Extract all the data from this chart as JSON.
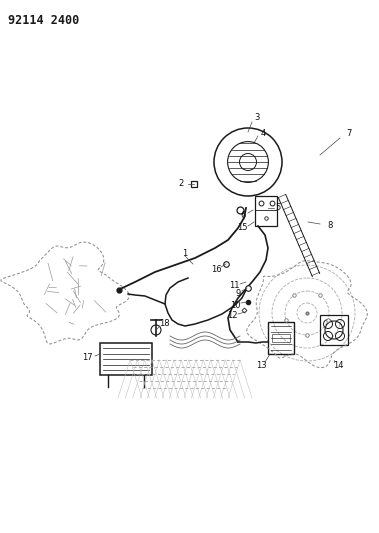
{
  "title": "92114 2400",
  "bg_color": "#ffffff",
  "line_color": "#1a1a1a",
  "gray": "#888888",
  "label_fontsize": 6.0,
  "title_fontsize": 8.5
}
